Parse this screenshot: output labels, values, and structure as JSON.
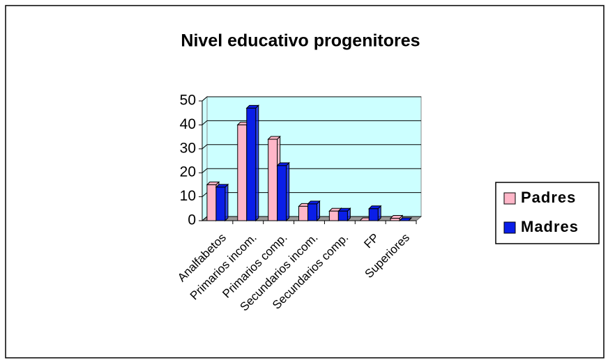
{
  "chart_data": {
    "type": "bar3d",
    "title": "Nivel educativo progenitores",
    "categories": [
      "Analfabetos",
      "Primarios incom.",
      "Primarios comp.",
      "Secundarios incom.",
      "Secundarios comp.",
      "FP",
      "Superiores"
    ],
    "series": [
      {
        "name": "Padres",
        "color": "#ffb6c8",
        "values": [
          15,
          40,
          34,
          6,
          4,
          0,
          1
        ]
      },
      {
        "name": "Madres",
        "color": "#0a1ee8",
        "values": [
          14,
          47,
          23,
          7,
          4,
          5,
          0
        ]
      }
    ],
    "ylim": [
      0,
      50
    ],
    "yticks": [
      0,
      10,
      20,
      30,
      40,
      50
    ],
    "grid": true,
    "legend": "right",
    "wall_color": "#ccffff"
  }
}
